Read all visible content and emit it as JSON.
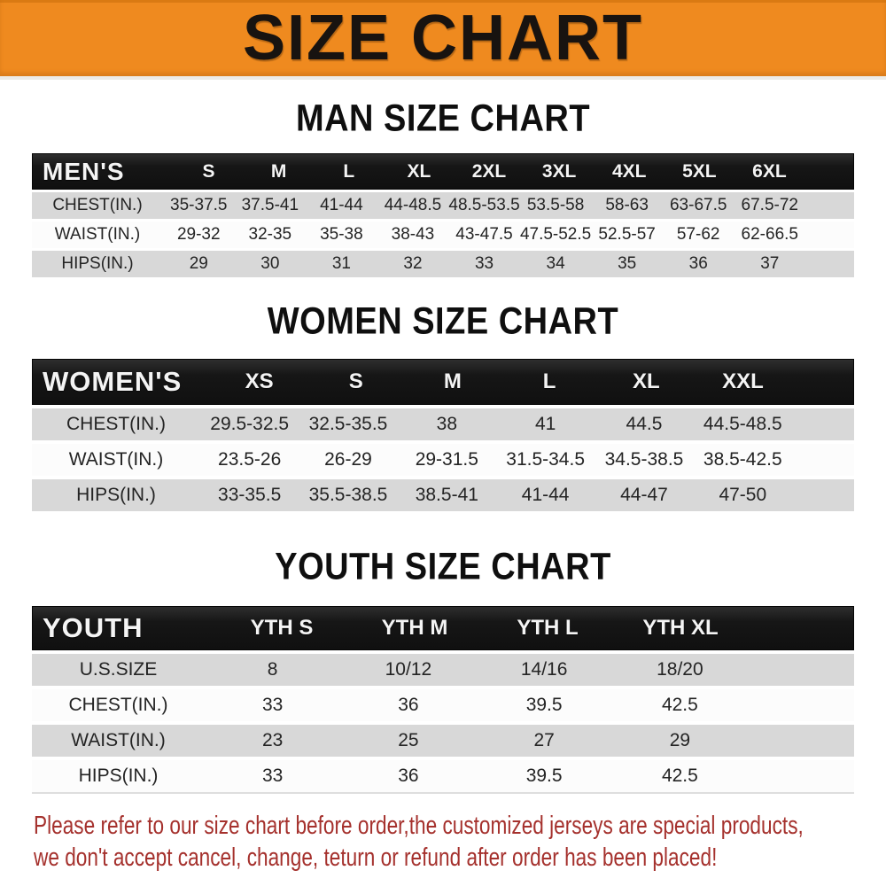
{
  "banner": {
    "title": "SIZE CHART"
  },
  "sections": [
    {
      "heading": "MAN SIZE CHART",
      "table": {
        "header": [
          "MEN'S",
          "S",
          "M",
          "L",
          "XL",
          "2XL",
          "3XL",
          "4XL",
          "5XL",
          "6XL"
        ],
        "rows": [
          {
            "label": "CHEST(IN.)",
            "values": [
              "35-37.5",
              "37.5-41",
              "41-44",
              "44-48.5",
              "48.5-53.5",
              "53.5-58",
              "58-63",
              "63-67.5",
              "67.5-72"
            ]
          },
          {
            "label": "WAIST(IN.)",
            "values": [
              "29-32",
              "32-35",
              "35-38",
              "38-43",
              "43-47.5",
              "47.5-52.5",
              "52.5-57",
              "57-62",
              "62-66.5"
            ]
          },
          {
            "label": "HIPS(IN.)",
            "values": [
              "29",
              "30",
              "31",
              "32",
              "33",
              "34",
              "35",
              "36",
              "37"
            ]
          }
        ]
      }
    },
    {
      "heading": "WOMEN SIZE CHART",
      "table": {
        "header": [
          "WOMEN'S",
          "XS",
          "S",
          "M",
          "L",
          "XL",
          "XXL"
        ],
        "rows": [
          {
            "label": "CHEST(IN.)",
            "values": [
              "29.5-32.5",
              "32.5-35.5",
              "38",
              "41",
              "44.5",
              "44.5-48.5"
            ]
          },
          {
            "label": "WAIST(IN.)",
            "values": [
              "23.5-26",
              "26-29",
              "29-31.5",
              "31.5-34.5",
              "34.5-38.5",
              "38.5-42.5"
            ]
          },
          {
            "label": "HIPS(IN.)",
            "values": [
              "33-35.5",
              "35.5-38.5",
              "38.5-41",
              "41-44",
              "44-47",
              "47-50"
            ]
          }
        ]
      }
    },
    {
      "heading": "YOUTH SIZE CHART",
      "table": {
        "header": [
          "YOUTH",
          "YTH S",
          "YTH M",
          "YTH L",
          "YTH XL"
        ],
        "rows": [
          {
            "label": "U.S.SIZE",
            "values": [
              "8",
              "10/12",
              "14/16",
              "18/20"
            ]
          },
          {
            "label": "CHEST(IN.)",
            "values": [
              "33",
              "36",
              "39.5",
              "42.5"
            ]
          },
          {
            "label": "WAIST(IN.)",
            "values": [
              "23",
              "25",
              "27",
              "29"
            ]
          },
          {
            "label": "HIPS(IN.)",
            "values": [
              "33",
              "36",
              "39.5",
              "42.5"
            ]
          }
        ]
      }
    }
  ],
  "disclaimer": {
    "lines": [
      "Please refer to our size chart before order,the customized jerseys are special products,",
      "we don't accept cancel, change, teturn or refund after order has been placed!"
    ]
  },
  "colors": {
    "banner_bg": "#ef8a1f",
    "header_bar_bg": "#161616",
    "row_gray": "#d8d8d8",
    "row_white": "#fcfcfc",
    "disclaimer_red": "#a5312d"
  }
}
